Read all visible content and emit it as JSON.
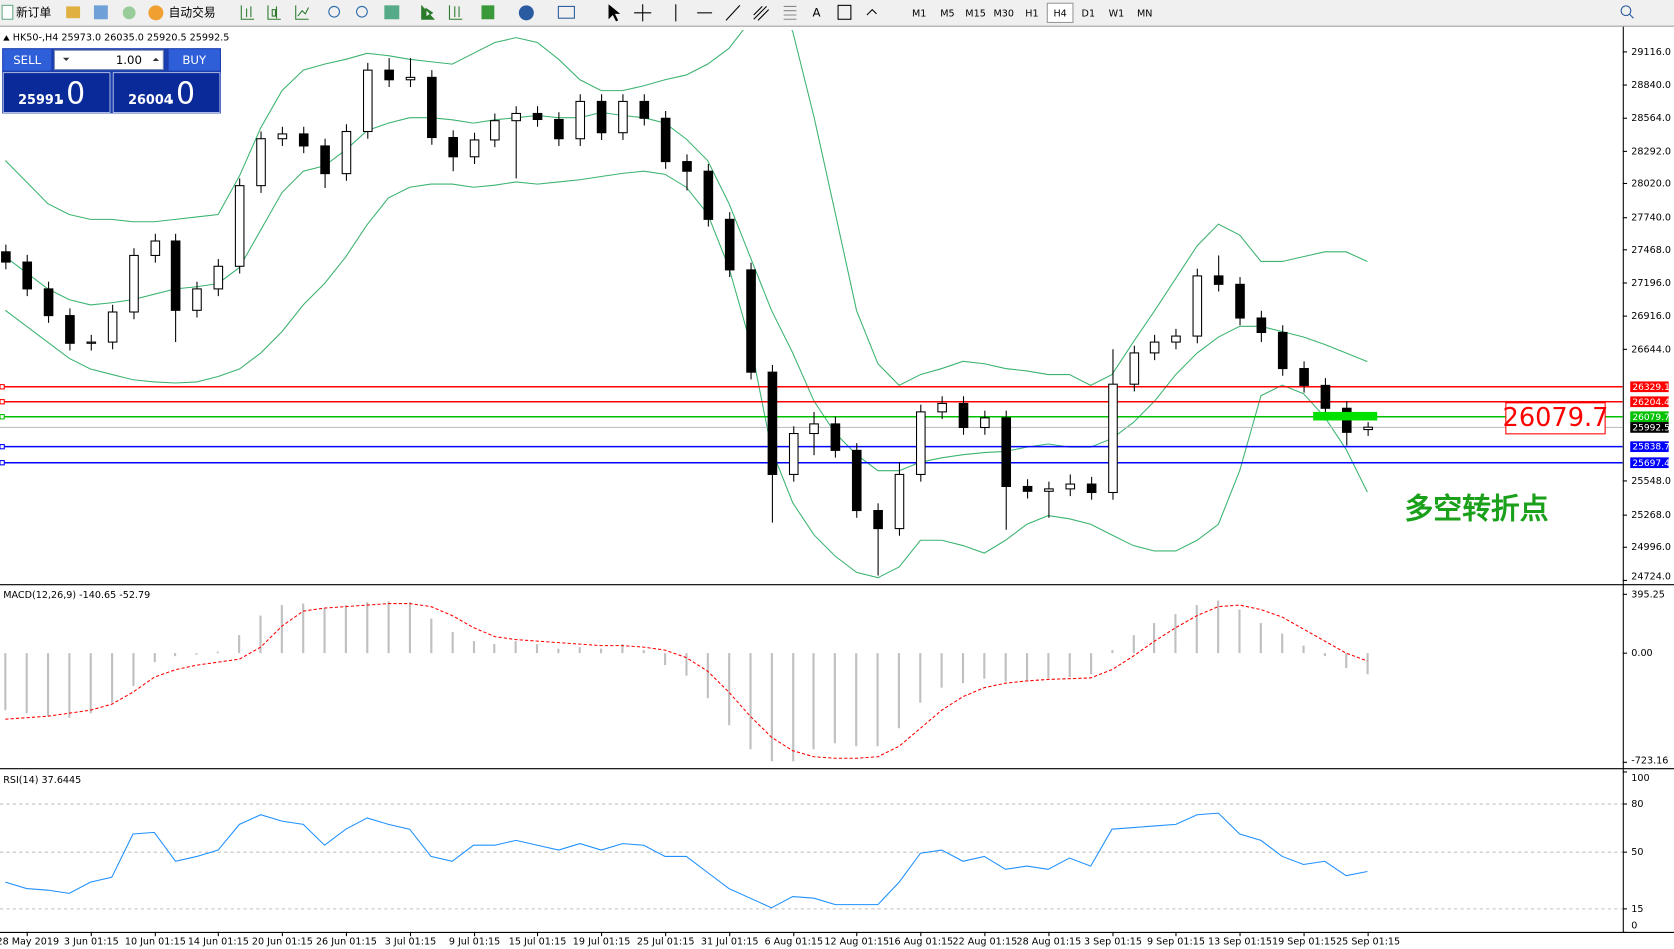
{
  "toolbar": {
    "new_order": "新订单",
    "auto_trading": "自动交易",
    "timeframes": [
      "M1",
      "M5",
      "M15",
      "M30",
      "H1",
      "H4",
      "D1",
      "W1",
      "MN"
    ],
    "active_timeframe": "H4"
  },
  "trade_panel": {
    "sell": "SELL",
    "volume": "1.00",
    "buy": "BUY",
    "sell_price": "25991",
    "sell_decimal": ".0",
    "buy_price": "26004",
    "buy_decimal": ".0"
  },
  "annotations": {
    "price_box": "26079.7",
    "note": "多空转折点"
  },
  "chart_data": [
    {
      "type": "candlestick",
      "header": "HK50-,H4  25973.0 26035.0 25920.5 25992.5",
      "x": [
        -1,
        0,
        1,
        2,
        3,
        4,
        5,
        6,
        7,
        8,
        9,
        10,
        11,
        12,
        13,
        14,
        15,
        16,
        17,
        18,
        19,
        20,
        21,
        22,
        23,
        24,
        25,
        26,
        27,
        28,
        29,
        30,
        31,
        32,
        33,
        34,
        35,
        36,
        37,
        38,
        39,
        40,
        41,
        42,
        43,
        44,
        45,
        46,
        47,
        48,
        49,
        50,
        51,
        52,
        53,
        54,
        55,
        56,
        57,
        58,
        59,
        60,
        61,
        62,
        63
      ],
      "open": [
        27450,
        27365,
        27142,
        26920,
        26690,
        26700,
        26950,
        27420,
        27540,
        26964,
        27142,
        27330,
        28000,
        28390,
        28430,
        28330,
        28100,
        28450,
        28960,
        28880,
        28900,
        28400,
        28240,
        28380,
        28540,
        28600,
        28550,
        28390,
        28700,
        28440,
        28700,
        28560,
        28200,
        28120,
        27720,
        27300,
        26450,
        25600,
        25940,
        26020,
        25800,
        25300,
        25150,
        25600,
        26120,
        26190,
        25990,
        26070,
        25500,
        25460,
        25480,
        25520,
        25450,
        26350,
        26610,
        26700,
        26750,
        27250,
        27180,
        26900,
        26780,
        26480,
        26340,
        26150,
        25973
      ],
      "high": [
        27510,
        27425,
        27202,
        26980,
        26760,
        27010,
        27480,
        27600,
        27600,
        27202,
        27390,
        28060,
        28450,
        28490,
        28490,
        28390,
        28510,
        29020,
        29060,
        29060,
        28960,
        28460,
        28440,
        28600,
        28660,
        28660,
        28610,
        28760,
        28760,
        28760,
        28760,
        28620,
        28260,
        28180,
        27780,
        27360,
        26510,
        26000,
        26120,
        26080,
        25860,
        25360,
        25700,
        26180,
        26250,
        26250,
        26130,
        26130,
        25560,
        25540,
        25600,
        25580,
        26640,
        26670,
        26760,
        26810,
        27310,
        27420,
        27240,
        26960,
        26840,
        26540,
        26400,
        26210,
        26035
      ],
      "low": [
        27305,
        27082,
        26860,
        26630,
        26630,
        26640,
        26890,
        27360,
        26700,
        26904,
        27082,
        27270,
        27940,
        28330,
        28270,
        27980,
        28040,
        28390,
        28820,
        28820,
        28340,
        28120,
        28180,
        28320,
        28060,
        28490,
        28330,
        28330,
        28380,
        28380,
        28500,
        28140,
        27960,
        27660,
        27240,
        26390,
        25200,
        25540,
        25760,
        25740,
        25240,
        24760,
        25090,
        25540,
        26060,
        25930,
        25930,
        25140,
        25400,
        25240,
        25420,
        25390,
        25390,
        26290,
        26550,
        26640,
        26690,
        27120,
        26840,
        26700,
        26420,
        26280,
        26090,
        25840,
        25920.5
      ],
      "close": [
        27365,
        27142,
        26920,
        26690,
        26700,
        26950,
        27420,
        27540,
        26964,
        27142,
        27330,
        28000,
        28390,
        28430,
        28330,
        28100,
        28450,
        28960,
        28880,
        28900,
        28400,
        28240,
        28380,
        28540,
        28600,
        28550,
        28390,
        28700,
        28440,
        28700,
        28560,
        28200,
        28120,
        27720,
        27300,
        26450,
        25600,
        25940,
        26020,
        25800,
        25300,
        25150,
        25600,
        26120,
        26190,
        25990,
        26070,
        25500,
        25460,
        25480,
        25520,
        25450,
        26350,
        26610,
        26700,
        26750,
        27250,
        27180,
        26900,
        26780,
        26480,
        26340,
        26150,
        25950,
        25992.5
      ],
      "bands": [
        {
          "color": "#3cb371",
          "values": [
            28209,
            28030,
            27850,
            27760,
            27720,
            27720,
            27700,
            27700,
            27720,
            27740,
            27760,
            28080,
            28480,
            28790,
            28960,
            29010,
            29050,
            29100,
            29080,
            29050,
            29030,
            29010,
            29100,
            29190,
            29230,
            29190,
            29050,
            28880,
            28790,
            28790,
            28830,
            28880,
            28920,
            29010,
            29140,
            29370,
            29630,
            29280,
            28570,
            27770,
            26960,
            26520,
            26340,
            26430,
            26480,
            26540,
            26520,
            26480,
            26460,
            26430,
            26430,
            26340,
            26430,
            26700,
            26960,
            27230,
            27500,
            27680,
            27590,
            27370,
            27370,
            27410,
            27450,
            27450,
            27370
          ]
        },
        {
          "color": "#3cb371",
          "values": [
            27409,
            27276,
            27142,
            27053,
            27009,
            27027,
            27053,
            27098,
            27142,
            27160,
            27187,
            27320,
            27631,
            27943,
            28120,
            28165,
            28298,
            28458,
            28520,
            28565,
            28565,
            28547,
            28520,
            28547,
            28565,
            28583,
            28565,
            28565,
            28609,
            28583,
            28565,
            28520,
            28387,
            28209,
            27853,
            27409,
            26964,
            26609,
            26209,
            25942,
            25764,
            25631,
            25631,
            25702,
            25738,
            25764,
            25782,
            25791,
            25827,
            25853,
            25827,
            25827,
            25898,
            26031,
            26209,
            26431,
            26609,
            26742,
            26831,
            26831,
            26787,
            26742,
            26680,
            26609,
            26538
          ]
        },
        {
          "color": "#3cb371",
          "values": [
            26964,
            26831,
            26698,
            26565,
            26476,
            26431,
            26387,
            26369,
            26360,
            26369,
            26414,
            26476,
            26609,
            26787,
            27009,
            27187,
            27409,
            27676,
            27898,
            27987,
            28013,
            28013,
            27987,
            28004,
            28031,
            28013,
            28031,
            28049,
            28076,
            28102,
            28120,
            28094,
            27987,
            27765,
            27320,
            26698,
            25809,
            25364,
            25097,
            24920,
            24786,
            24742,
            24831,
            25053,
            25053,
            25009,
            24946,
            25053,
            25186,
            25258,
            25231,
            25186,
            25097,
            25009,
            24964,
            24964,
            25053,
            25186,
            25631,
            26254,
            26342,
            26271,
            26076,
            25809,
            25453
          ]
        }
      ],
      "levels": [
        {
          "value": 26329.1,
          "color": "#ff0000"
        },
        {
          "value": 26204.4,
          "color": "#ff0000"
        },
        {
          "value": 26079.7,
          "color": "#00c000"
        },
        {
          "value": 25838.7,
          "color": "#0000ff"
        },
        {
          "value": 25697.4,
          "color": "#0000ff"
        }
      ],
      "bid": 25992.5,
      "xlim": [
        -1.25,
        75
      ],
      "xticks": [
        {
          "value": 0,
          "label": "28 May 2019"
        },
        {
          "value": 3,
          "label": "3 Jun 01:15"
        },
        {
          "value": 6,
          "label": "10 Jun 01:15"
        },
        {
          "value": 9,
          "label": "14 Jun 01:15"
        },
        {
          "value": 12,
          "label": "20 Jun 01:15"
        },
        {
          "value": 15,
          "label": "26 Jun 01:15"
        },
        {
          "value": 18,
          "label": "3 Jul 01:15"
        },
        {
          "value": 21,
          "label": "9 Jul 01:15"
        },
        {
          "value": 24,
          "label": "15 Jul 01:15"
        },
        {
          "value": 27,
          "label": "19 Jul 01:15"
        },
        {
          "value": 30,
          "label": "25 Jul 01:15"
        },
        {
          "value": 33,
          "label": "31 Jul 01:15"
        },
        {
          "value": 36,
          "label": "6 Aug 01:15"
        },
        {
          "value": 39,
          "label": "12 Aug 01:15"
        },
        {
          "value": 42,
          "label": "16 Aug 01:15"
        },
        {
          "value": 45,
          "label": "22 Aug 01:15"
        },
        {
          "value": 48,
          "label": "28 Aug 01:15"
        },
        {
          "value": 51,
          "label": "3 Sep 01:15"
        },
        {
          "value": 54,
          "label": "9 Sep 01:15"
        },
        {
          "value": 57,
          "label": "13 Sep 01:15"
        },
        {
          "value": 60,
          "label": "19 Sep 01:15"
        },
        {
          "value": 63,
          "label": "25 Sep 01:15"
        }
      ],
      "ylim": [
        24697,
        29294
      ],
      "yticks": [
        {
          "value": 29116,
          "label": "29116.0"
        },
        {
          "value": 28840,
          "label": "28840.0"
        },
        {
          "value": 28564,
          "label": "28564.0"
        },
        {
          "value": 28292,
          "label": "28292.0"
        },
        {
          "value": 28020,
          "label": "28020.0"
        },
        {
          "value": 27740,
          "label": "27740.0"
        },
        {
          "value": 27468,
          "label": "27468.0"
        },
        {
          "value": 27196,
          "label": "27196.0"
        },
        {
          "value": 26916,
          "label": "26916.0"
        },
        {
          "value": 26644,
          "label": "26644.0"
        },
        {
          "value": 25548,
          "label": "25548.0"
        },
        {
          "value": 25268,
          "label": "25268.0"
        },
        {
          "value": 24996,
          "label": "24996.0"
        },
        {
          "value": 24724,
          "label": "24724.0"
        }
      ],
      "grid": false
    },
    {
      "type": "macd",
      "header": "MACD(12,26,9) -140.65 -52.79",
      "series": [
        {
          "style": "bar",
          "color": "#c0c0c0",
          "values": [
            -380,
            -400,
            -420,
            -430,
            -400,
            -330,
            -220,
            -60,
            -20,
            -10,
            10,
            120,
            250,
            320,
            330,
            300,
            320,
            340,
            345,
            340,
            230,
            140,
            80,
            60,
            80,
            60,
            30,
            40,
            30,
            60,
            20,
            -80,
            -150,
            -300,
            -480,
            -640,
            -720,
            -720,
            -640,
            -600,
            -620,
            -620,
            -500,
            -330,
            -230,
            -200,
            -170,
            -190,
            -180,
            -170,
            -160,
            -140,
            20,
            120,
            200,
            260,
            320,
            350,
            290,
            200,
            130,
            50,
            -20,
            -100,
            -140.65
          ]
        },
        {
          "style": "dotted",
          "color": "#ff0000",
          "values": [
            -440,
            -430,
            -420,
            -400,
            -380,
            -340,
            -260,
            -160,
            -110,
            -80,
            -60,
            -40,
            40,
            180,
            280,
            300,
            310,
            320,
            330,
            330,
            310,
            250,
            170,
            110,
            90,
            80,
            70,
            60,
            50,
            50,
            40,
            20,
            -30,
            -120,
            -260,
            -420,
            -560,
            -650,
            -690,
            -700,
            -700,
            -690,
            -620,
            -500,
            -380,
            -290,
            -230,
            -200,
            -185,
            -175,
            -170,
            -165,
            -110,
            -20,
            80,
            170,
            250,
            310,
            320,
            290,
            240,
            160,
            80,
            0,
            -52.79
          ]
        }
      ],
      "ylim": [
        -759,
        445
      ],
      "yticks": [
        {
          "value": 395.25,
          "label": "395.25"
        },
        {
          "value": 0,
          "label": "0.00"
        },
        {
          "value": -723.16,
          "label": "-723.16"
        }
      ],
      "grid": false
    },
    {
      "type": "line",
      "header": "RSI(14) 37.6445",
      "series": [
        {
          "style": "line",
          "color": "#1e90ff",
          "values": [
            31,
            27,
            26,
            24,
            31,
            34,
            61,
            62,
            44,
            47,
            51,
            67,
            73,
            69,
            67,
            54,
            64,
            71,
            67,
            64,
            47,
            44,
            54,
            54,
            57,
            54,
            51,
            55,
            51,
            55,
            54,
            47,
            47,
            37,
            27,
            21,
            15,
            22,
            21,
            17,
            17,
            17,
            31,
            49,
            51,
            44,
            47,
            39,
            41,
            39,
            46,
            41,
            64,
            65,
            66,
            67,
            73,
            74,
            61,
            57,
            47,
            42,
            44,
            35,
            37.6445
          ]
        }
      ],
      "ylim": [
        0,
        100
      ],
      "yticks": [
        100,
        80,
        50,
        15,
        0
      ],
      "grid": true
    }
  ]
}
